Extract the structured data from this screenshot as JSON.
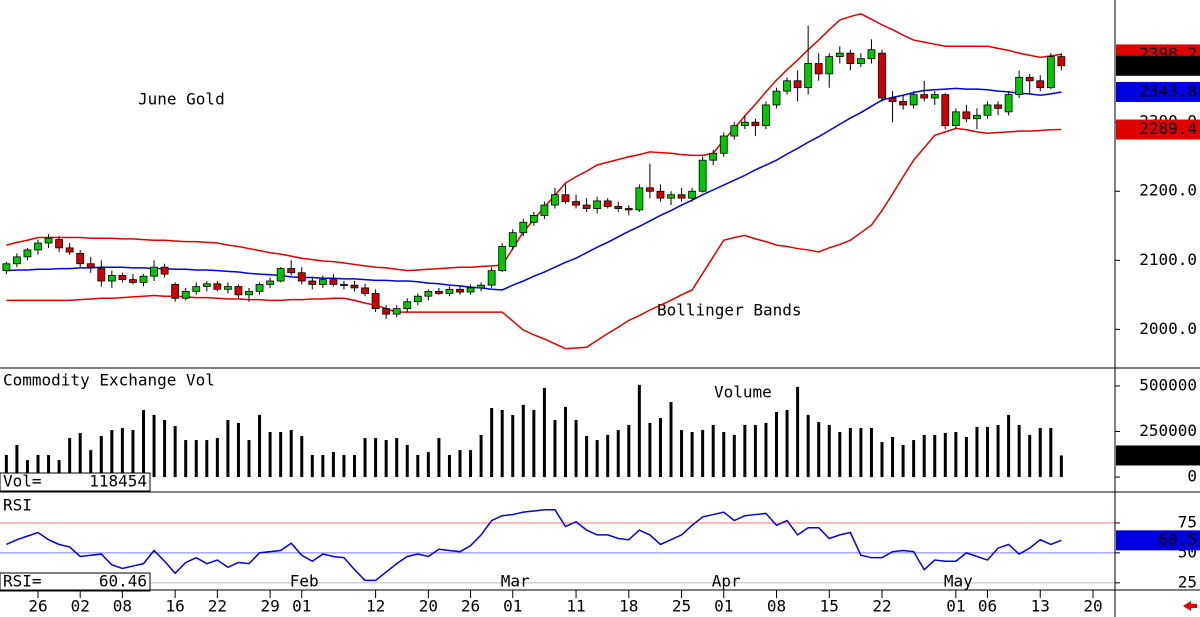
{
  "chart_data": [
    {
      "type": "candlestick",
      "title": "June Gold",
      "annotation": "Bollinger Bands",
      "colors": {
        "up": "#00c800",
        "down": "#d00000"
      },
      "open": [
        2085,
        2095,
        2105,
        2115,
        2125,
        2130,
        2118,
        2110,
        2095,
        2088,
        2070,
        2078,
        2072,
        2068,
        2077,
        2090,
        2065,
        2045,
        2055,
        2062,
        2066,
        2058,
        2062,
        2050,
        2055,
        2065,
        2070,
        2088,
        2082,
        2070,
        2065,
        2072,
        2065,
        2064,
        2060,
        2052,
        2030,
        2022,
        2030,
        2040,
        2048,
        2055,
        2052,
        2058,
        2054,
        2060,
        2064,
        2085,
        2120,
        2140,
        2155,
        2165,
        2180,
        2195,
        2185,
        2180,
        2175,
        2186,
        2178,
        2175,
        2173,
        2205,
        2200,
        2190,
        2195,
        2190,
        2200,
        2245,
        2255,
        2280,
        2295,
        2300,
        2295,
        2325,
        2345,
        2360,
        2350,
        2385,
        2370,
        2395,
        2400,
        2385,
        2392,
        2400,
        2335,
        2330,
        2325,
        2340,
        2335,
        2340,
        2295,
        2315,
        2305,
        2310,
        2325,
        2315,
        2340,
        2365,
        2360,
        2350,
        2395,
        null,
        null,
        null
      ],
      "high": [
        2098,
        2110,
        2118,
        2130,
        2138,
        2135,
        2125,
        2115,
        2105,
        2100,
        2085,
        2082,
        2080,
        2080,
        2100,
        2095,
        2068,
        2060,
        2068,
        2070,
        2070,
        2068,
        2065,
        2060,
        2068,
        2075,
        2090,
        2100,
        2090,
        2075,
        2078,
        2080,
        2070,
        2070,
        2066,
        2058,
        2035,
        2035,
        2045,
        2052,
        2058,
        2060,
        2062,
        2062,
        2065,
        2068,
        2090,
        2125,
        2145,
        2160,
        2170,
        2185,
        2205,
        2210,
        2195,
        2190,
        2192,
        2190,
        2185,
        2180,
        2210,
        2240,
        2210,
        2200,
        2205,
        2205,
        2250,
        2260,
        2285,
        2300,
        2310,
        2305,
        2330,
        2350,
        2365,
        2375,
        2440,
        2400,
        2400,
        2410,
        2405,
        2400,
        2420,
        2405,
        2345,
        2340,
        2345,
        2360,
        2345,
        2342,
        2320,
        2325,
        2320,
        2330,
        2330,
        2345,
        2375,
        2370,
        2368,
        2400,
        2400,
        null,
        null,
        null
      ],
      "low": [
        2080,
        2090,
        2100,
        2108,
        2118,
        2112,
        2108,
        2090,
        2082,
        2062,
        2060,
        2068,
        2065,
        2062,
        2070,
        2075,
        2040,
        2042,
        2050,
        2055,
        2055,
        2052,
        2045,
        2040,
        2050,
        2060,
        2068,
        2078,
        2065,
        2058,
        2060,
        2062,
        2058,
        2055,
        2048,
        2025,
        2015,
        2018,
        2025,
        2035,
        2042,
        2050,
        2048,
        2050,
        2050,
        2055,
        2060,
        2083,
        2115,
        2135,
        2150,
        2160,
        2175,
        2182,
        2175,
        2170,
        2168,
        2175,
        2170,
        2165,
        2170,
        2190,
        2185,
        2180,
        2185,
        2185,
        2198,
        2238,
        2250,
        2275,
        2290,
        2280,
        2290,
        2320,
        2340,
        2330,
        2340,
        2360,
        2350,
        2385,
        2375,
        2380,
        2385,
        2330,
        2300,
        2318,
        2320,
        2330,
        2325,
        2290,
        2290,
        2300,
        2290,
        2305,
        2310,
        2310,
        2335,
        2340,
        2345,
        2348,
        2375,
        null,
        null,
        null
      ],
      "close": [
        2095,
        2105,
        2115,
        2125,
        2132,
        2118,
        2112,
        2095,
        2090,
        2070,
        2078,
        2072,
        2068,
        2077,
        2090,
        2080,
        2045,
        2055,
        2062,
        2066,
        2058,
        2062,
        2050,
        2055,
        2065,
        2070,
        2088,
        2082,
        2070,
        2065,
        2072,
        2065,
        2064,
        2060,
        2052,
        2030,
        2022,
        2030,
        2040,
        2048,
        2055,
        2052,
        2058,
        2054,
        2060,
        2064,
        2085,
        2120,
        2140,
        2155,
        2165,
        2180,
        2195,
        2185,
        2180,
        2175,
        2186,
        2178,
        2175,
        2173,
        2205,
        2200,
        2190,
        2195,
        2190,
        2200,
        2245,
        2255,
        2280,
        2295,
        2300,
        2295,
        2325,
        2345,
        2360,
        2350,
        2385,
        2370,
        2395,
        2400,
        2385,
        2392,
        2405,
        2335,
        2330,
        2325,
        2340,
        2335,
        2340,
        2295,
        2315,
        2305,
        2310,
        2325,
        2320,
        2340,
        2365,
        2360,
        2350,
        2395,
        2381.7,
        null,
        null,
        null
      ],
      "bands": {
        "upper": {
          "color": "#e00000",
          "values": [
            2122,
            2126,
            2129,
            2133,
            2133,
            2133,
            2133,
            2133,
            2132,
            2132,
            2132,
            2131,
            2131,
            2130,
            2129,
            2129,
            2128,
            2127,
            2127,
            2126,
            2125,
            2122,
            2120,
            2117,
            2114,
            2111,
            2109,
            2106,
            2103,
            2101,
            2099,
            2098,
            2096,
            2094,
            2092,
            2090,
            2089,
            2087,
            2085,
            2086,
            2087,
            2088,
            2089,
            2090,
            2090,
            2091,
            2092,
            2093,
            2117,
            2141,
            2159,
            2177,
            2194,
            2212,
            2221,
            2229,
            2238,
            2242,
            2246,
            2250,
            2253,
            2257,
            2256,
            2255,
            2253,
            2252,
            2252,
            2255,
            2274,
            2291,
            2309,
            2326,
            2344,
            2361,
            2376,
            2390,
            2405,
            2419,
            2434,
            2448,
            2453,
            2457,
            2449,
            2441,
            2434,
            2426,
            2419,
            2416,
            2413,
            2410,
            2410,
            2410,
            2410,
            2410,
            2407,
            2404,
            2400,
            2397,
            2394,
            2396,
            2398.2,
            null,
            null,
            null
          ]
        },
        "middle": {
          "color": "#0000e0",
          "values": [
            2085,
            2086,
            2086,
            2087,
            2087,
            2088,
            2088,
            2089,
            2089,
            2090,
            2090,
            2090,
            2089,
            2089,
            2088,
            2088,
            2087,
            2087,
            2086,
            2086,
            2085,
            2084,
            2083,
            2081,
            2080,
            2079,
            2078,
            2076,
            2075,
            2075,
            2074,
            2074,
            2073,
            2073,
            2072,
            2071,
            2071,
            2070,
            2070,
            2069,
            2067,
            2066,
            2064,
            2063,
            2061,
            2060,
            2058,
            2057,
            2064,
            2070,
            2077,
            2083,
            2090,
            2097,
            2103,
            2111,
            2119,
            2126,
            2134,
            2142,
            2149,
            2157,
            2165,
            2172,
            2180,
            2187,
            2195,
            2202,
            2209,
            2216,
            2223,
            2231,
            2238,
            2245,
            2254,
            2262,
            2271,
            2279,
            2288,
            2297,
            2306,
            2314,
            2323,
            2332,
            2336,
            2339,
            2343,
            2346,
            2347,
            2348,
            2349,
            2348,
            2348,
            2347,
            2345,
            2344,
            2342,
            2341,
            2339,
            2341,
            2343.8,
            null,
            null,
            null
          ]
        },
        "lower": {
          "color": "#e00000",
          "values": [
            2042,
            2042,
            2042,
            2042,
            2042,
            2042,
            2042,
            2043,
            2044,
            2045,
            2045,
            2046,
            2047,
            2048,
            2049,
            2048,
            2048,
            2047,
            2046,
            2046,
            2045,
            2044,
            2044,
            2043,
            2043,
            2042,
            2042,
            2043,
            2043,
            2044,
            2044,
            2045,
            2045,
            2042,
            2038,
            2035,
            2030,
            2025,
            2025,
            2025,
            2025,
            2025,
            2025,
            2025,
            2025,
            2025,
            2025,
            2025,
            2012,
            1999,
            1992,
            1986,
            1979,
            1972,
            1973,
            1974,
            1984,
            1994,
            2003,
            2013,
            2020,
            2028,
            2035,
            2042,
            2050,
            2057,
            2081,
            2105,
            2129,
            2133,
            2136,
            2131,
            2127,
            2122,
            2120,
            2117,
            2115,
            2112,
            2118,
            2123,
            2129,
            2140,
            2151,
            2172,
            2196,
            2221,
            2245,
            2263,
            2281,
            2286,
            2291,
            2289,
            2286,
            2284,
            2285,
            2286,
            2287,
            2287,
            2288,
            2289,
            2289.4,
            null,
            null,
            null
          ]
        }
      },
      "ylim": [
        1944,
        2477
      ],
      "yticks": [
        {
          "value": 2000,
          "label": "2000.0"
        },
        {
          "value": 2100,
          "label": "2100.0"
        },
        {
          "value": 2200,
          "label": "2200.0"
        },
        {
          "value": 2300,
          "label": "2300.0"
        }
      ]
    },
    {
      "type": "bar",
      "title": "Commodity Exchange Vol",
      "annotation": "Volume",
      "value_prefix": "Vol=",
      "color": "#000000",
      "values": [
        121000,
        176000,
        93000,
        121000,
        121000,
        93000,
        214000,
        242000,
        148000,
        225000,
        258000,
        269000,
        258000,
        368000,
        341000,
        313000,
        280000,
        203000,
        203000,
        203000,
        214000,
        313000,
        297000,
        203000,
        341000,
        247000,
        247000,
        258000,
        225000,
        121000,
        121000,
        137000,
        121000,
        121000,
        214000,
        214000,
        203000,
        214000,
        176000,
        121000,
        137000,
        214000,
        121000,
        148000,
        148000,
        231000,
        379000,
        368000,
        341000,
        396000,
        368000,
        489000,
        313000,
        385000,
        313000,
        225000,
        203000,
        231000,
        258000,
        286000,
        506000,
        297000,
        324000,
        412000,
        258000,
        247000,
        258000,
        286000,
        247000,
        231000,
        286000,
        286000,
        297000,
        357000,
        368000,
        495000,
        341000,
        302000,
        286000,
        247000,
        269000,
        269000,
        269000,
        192000,
        220000,
        176000,
        203000,
        231000,
        231000,
        242000,
        247000,
        220000,
        275000,
        275000,
        286000,
        341000,
        286000,
        231000,
        269000,
        269000,
        118454,
        null,
        null,
        null
      ],
      "ylim": [
        -82000,
        593000
      ],
      "yticks": [
        0,
        250000,
        500000
      ]
    },
    {
      "type": "line",
      "title": "RSI",
      "value_prefix": "RSI=",
      "color": "#0000e0",
      "last_label": "60.5",
      "values": [
        57,
        61,
        64,
        67,
        61,
        57,
        55,
        47,
        48,
        49,
        40,
        37,
        39,
        41,
        52,
        43,
        33,
        42,
        46,
        41,
        44,
        38,
        42,
        41,
        50,
        51,
        52,
        58,
        48,
        43,
        49,
        47,
        46,
        36,
        27,
        27,
        34,
        41,
        47,
        49,
        47,
        53,
        52,
        51,
        56,
        65,
        77,
        81,
        82,
        84,
        85,
        86,
        86,
        72,
        76,
        69,
        65,
        65,
        62,
        61,
        69,
        65,
        57,
        61,
        65,
        73,
        80,
        82,
        84,
        77,
        81,
        82,
        83,
        73,
        77,
        65,
        71,
        71,
        62,
        65,
        67,
        48,
        46,
        46,
        51,
        52,
        51,
        36,
        44,
        43,
        43,
        50,
        47,
        44,
        54,
        57,
        49,
        54,
        61,
        57,
        60.46,
        null,
        null,
        null
      ],
      "ylim": [
        19,
        100
      ],
      "yticks": [
        25,
        50,
        75
      ],
      "categories": [
        null,
        null,
        null,
        "26",
        null,
        null,
        null,
        "02",
        null,
        null,
        null,
        "08",
        null,
        null,
        null,
        null,
        "16",
        null,
        null,
        null,
        "22",
        null,
        null,
        null,
        null,
        "29",
        null,
        null,
        "01",
        null,
        null,
        null,
        null,
        null,
        null,
        "12",
        null,
        null,
        null,
        null,
        "20",
        null,
        null,
        null,
        "26",
        null,
        null,
        null,
        "01",
        null,
        null,
        null,
        null,
        null,
        "11",
        null,
        null,
        null,
        null,
        "18",
        null,
        null,
        null,
        null,
        "25",
        null,
        null,
        null,
        "01",
        null,
        null,
        null,
        null,
        "08",
        null,
        null,
        null,
        null,
        "15",
        null,
        null,
        null,
        null,
        "22",
        null,
        null,
        null,
        null,
        null,
        null,
        "01",
        null,
        null,
        "06",
        null,
        null,
        null,
        null,
        "13",
        null,
        null,
        null,
        null,
        "20"
      ],
      "months": [
        null,
        null,
        null,
        null,
        null,
        null,
        null,
        null,
        null,
        null,
        null,
        null,
        null,
        null,
        null,
        null,
        null,
        null,
        null,
        null,
        null,
        null,
        null,
        null,
        null,
        null,
        null,
        null,
        "Feb",
        null,
        null,
        null,
        null,
        null,
        null,
        null,
        null,
        null,
        null,
        null,
        null,
        null,
        null,
        null,
        null,
        null,
        null,
        null,
        "Mar",
        null,
        null,
        null,
        null,
        null,
        null,
        null,
        null,
        null,
        null,
        null,
        null,
        null,
        null,
        null,
        null,
        null,
        null,
        null,
        "Apr",
        null,
        null,
        null,
        null,
        null,
        null,
        null,
        null,
        null,
        null,
        null,
        null,
        null,
        null,
        null,
        null,
        null,
        null,
        null,
        null,
        null,
        "May",
        null,
        null,
        null,
        null,
        null,
        null,
        null,
        null,
        null,
        null,
        null,
        null,
        null
      ]
    }
  ]
}
